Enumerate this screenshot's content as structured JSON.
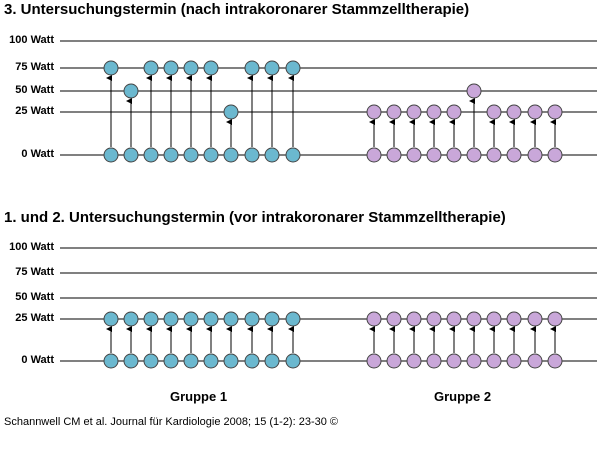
{
  "panels": [
    {
      "title": "3. Untersuchungstermin (nach intrakoronarer Stammzelltherapie)",
      "y_labels": [
        "100 Watt",
        "75 Watt",
        "50 Watt",
        "25 Watt",
        "0 Watt"
      ],
      "groups": [
        {
          "name": "Gruppe 1",
          "color": "#6bb8cf",
          "start_watt": [
            0,
            0,
            0,
            0,
            0,
            0,
            0,
            0,
            0,
            0
          ],
          "end_watt": [
            75,
            50,
            75,
            75,
            75,
            75,
            25,
            75,
            75,
            75
          ]
        },
        {
          "name": "Gruppe 2",
          "color": "#c9a7d9",
          "start_watt": [
            0,
            0,
            0,
            0,
            0,
            0,
            0,
            0,
            0,
            0
          ],
          "end_watt": [
            25,
            25,
            25,
            25,
            25,
            50,
            25,
            25,
            25,
            25
          ]
        }
      ]
    },
    {
      "title": "1. und 2. Untersuchungstermin (vor intrakoronarer Stammzelltherapie)",
      "y_labels": [
        "100 Watt",
        "75 Watt",
        "50 Watt",
        "25 Watt",
        "0 Watt"
      ],
      "groups": [
        {
          "name": "Gruppe 1",
          "color": "#6bb8cf",
          "start_watt": [
            0,
            0,
            0,
            0,
            0,
            0,
            0,
            0,
            0,
            0
          ],
          "end_watt": [
            25,
            25,
            25,
            25,
            25,
            25,
            25,
            25,
            25,
            25
          ]
        },
        {
          "name": "Gruppe 2",
          "color": "#c9a7d9",
          "start_watt": [
            0,
            0,
            0,
            0,
            0,
            0,
            0,
            0,
            0,
            0
          ],
          "end_watt": [
            25,
            25,
            25,
            25,
            25,
            25,
            25,
            25,
            25,
            25
          ]
        }
      ]
    }
  ],
  "group_labels": [
    "Gruppe 1",
    "Gruppe 2"
  ],
  "citation": "Schannwell CM et al. Journal für Kardiologie 2008; 15 (1-2): 23-30 ©"
}
